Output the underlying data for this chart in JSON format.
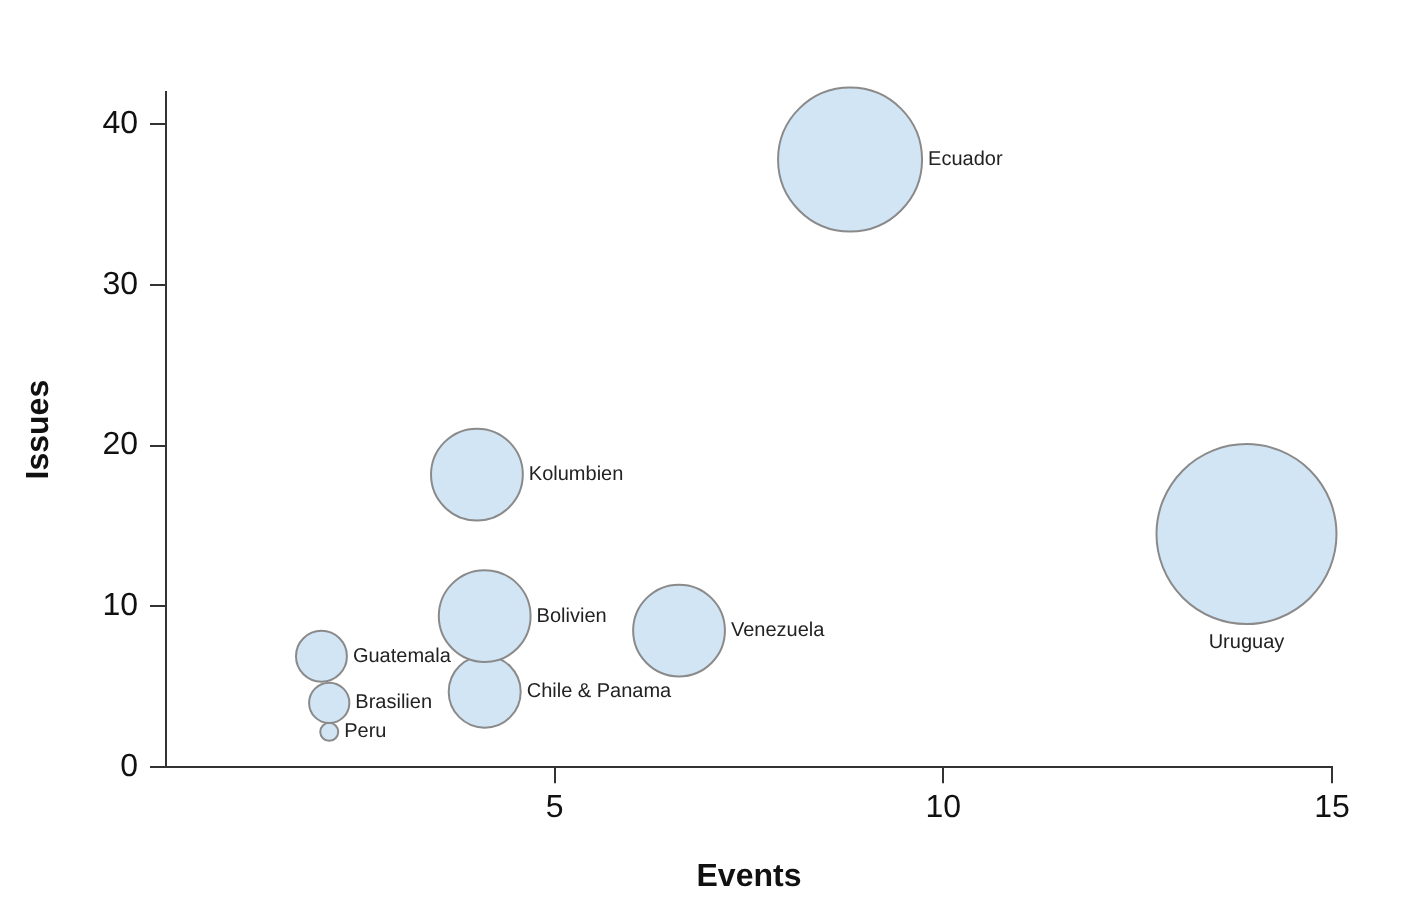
{
  "chart_data": {
    "type": "bubble",
    "xlabel": "Events",
    "ylabel": "Issues",
    "xlim": [
      0,
      15
    ],
    "xticks": [
      5,
      10,
      15
    ],
    "ylim": [
      0,
      42
    ],
    "yticks": [
      0,
      10,
      20,
      30,
      40
    ],
    "grid": false,
    "legend": false,
    "series": [
      {
        "name": "Ecuador",
        "color": "#d2e5f5",
        "x": [
          8.8
        ],
        "values": [
          37.8
        ],
        "sizes": [
          0.64
        ]
      },
      {
        "name": "Uruguay",
        "color": "#d2e5f5",
        "x": [
          13.9
        ],
        "values": [
          14.5
        ],
        "sizes": [
          1
        ]
      },
      {
        "name": "Kolumbien",
        "color": "#d2e5f5",
        "x": [
          4.0
        ],
        "values": [
          18.2
        ],
        "sizes": [
          0.26
        ]
      },
      {
        "name": "Bolivien",
        "color": "#d2e5f5",
        "x": [
          4.1
        ],
        "values": [
          9.4
        ],
        "sizes": [
          0.26
        ]
      },
      {
        "name": "Venezuela",
        "color": "#d2e5f5",
        "x": [
          6.6
        ],
        "values": [
          8.5
        ],
        "sizes": [
          0.26
        ]
      },
      {
        "name": "Chile & Panama",
        "color": "#d2e5f5",
        "x": [
          4.1
        ],
        "values": [
          4.7
        ],
        "sizes": [
          0.16
        ]
      },
      {
        "name": "Guatemala",
        "color": "#d2e5f5",
        "x": [
          2.0
        ],
        "values": [
          6.9
        ],
        "sizes": [
          0.08
        ]
      },
      {
        "name": "Brasilien",
        "color": "#d2e5f5",
        "x": [
          2.1
        ],
        "values": [
          4.0
        ],
        "sizes": [
          0.05
        ]
      },
      {
        "name": "Peru",
        "color": "#d2e5f5",
        "x": [
          2.1
        ],
        "values": [
          2.2
        ],
        "sizes": [
          0.01
        ]
      }
    ]
  }
}
